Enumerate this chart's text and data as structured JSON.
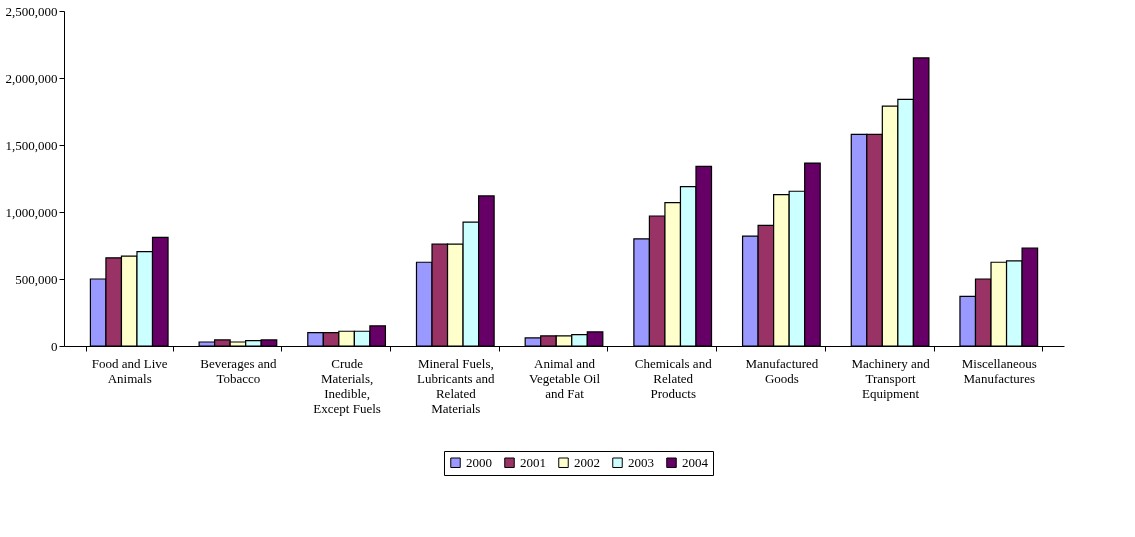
{
  "chart_data": {
    "type": "bar",
    "categories": [
      "Food and Live Animals",
      "Beverages and Tobacco",
      "Crude Materials, Inedible, Except Fuels",
      "Mineral Fuels, Lubricants and Related Materials",
      "Animal and Vegetable Oil and Fat",
      "Chemicals and Related Products",
      "Manufactured Goods",
      "Machinery and Transport Equipment",
      "Miscellaneous Manufactures"
    ],
    "series": [
      {
        "name": "2000",
        "color": "#9999ff",
        "values": [
          500000,
          30000,
          100000,
          625000,
          60000,
          800000,
          820000,
          1580000,
          370000
        ]
      },
      {
        "name": "2001",
        "color": "#993366",
        "values": [
          658000,
          45000,
          100000,
          760000,
          75000,
          970000,
          900000,
          1580000,
          500000
        ]
      },
      {
        "name": "2002",
        "color": "#ffffcc",
        "values": [
          670000,
          30000,
          110000,
          760000,
          75000,
          1070000,
          1130000,
          1790000,
          625000
        ]
      },
      {
        "name": "2003",
        "color": "#ccffff",
        "values": [
          705000,
          40000,
          110000,
          925000,
          85000,
          1190000,
          1155000,
          1840000,
          635000
        ]
      },
      {
        "name": "2004",
        "color": "#660066",
        "values": [
          810000,
          45000,
          150000,
          1120000,
          105000,
          1340000,
          1365000,
          2150000,
          730000
        ]
      }
    ],
    "ylim": [
      0,
      2500000
    ],
    "yticks": [
      0,
      {
        "value": 500000,
        "label": "500,000"
      },
      {
        "value": 1000000,
        "label": "1,000,000"
      },
      {
        "value": 1500000,
        "label": "1,500,000"
      },
      {
        "value": 2000000,
        "label": "2,000,000"
      },
      {
        "value": 2500000,
        "label": "2,500,000"
      }
    ],
    "grid": false,
    "legend": "bottom"
  }
}
